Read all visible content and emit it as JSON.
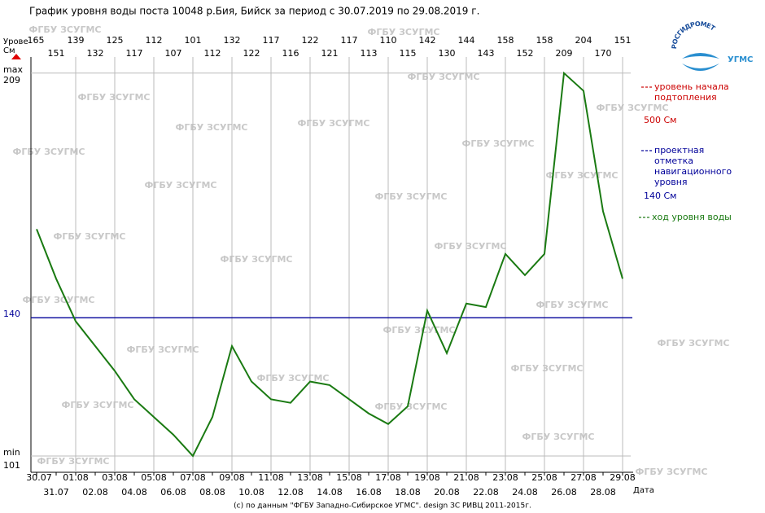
{
  "chart_data": {
    "type": "line",
    "title": "График уровня воды поста 10048 р.Бия, Бийск за период с 30.07.2019 по 29.08.2019 г.",
    "y_label": "Урове",
    "y_unit": "См",
    "x_label": "Дата",
    "ymax_label": "max",
    "ymin_label": "min",
    "footer": "(c) по данным \"ФГБУ Западно-Сибирское УГМС\". design ЗС РИВЦ 2011-2015г.",
    "watermark": "ФГБУ ЗСУГМС",
    "logo_text": "РОСГИДРОМЕТ",
    "logo_subtext": "УГМС",
    "categories": [
      "30.07",
      "31.07",
      "01.08",
      "02.08",
      "03.08",
      "04.08",
      "05.08",
      "06.08",
      "07.08",
      "08.08",
      "09.08",
      "10.08",
      "11.08",
      "12.08",
      "13.08",
      "14.08",
      "15.08",
      "16.08",
      "17.08",
      "18.08",
      "19.08",
      "20.08",
      "21.08",
      "22.08",
      "23.08",
      "24.08",
      "25.08",
      "26.08",
      "27.08",
      "28.08",
      "29.08"
    ],
    "series": [
      {
        "name": "ход уровня воды",
        "color": "#1a7a12",
        "values": [
          165,
          151,
          139,
          132,
          125,
          117,
          112,
          107,
          101,
          112,
          132,
          122,
          117,
          116,
          122,
          121,
          117,
          113,
          110,
          115,
          142,
          130,
          144,
          143,
          158,
          152,
          158,
          209,
          204,
          170,
          151
        ]
      }
    ],
    "reference_lines": [
      {
        "name": "уровень начала подтопления",
        "value": 500,
        "value_label": "500 См",
        "color": "#cc0000"
      },
      {
        "name": "проектная отметка навигационного уровня",
        "value": 140,
        "value_label": "140 См",
        "color": "#000099"
      }
    ],
    "ylim": [
      96.4,
      212.4
    ],
    "yticks": [
      101,
      140,
      209
    ]
  }
}
